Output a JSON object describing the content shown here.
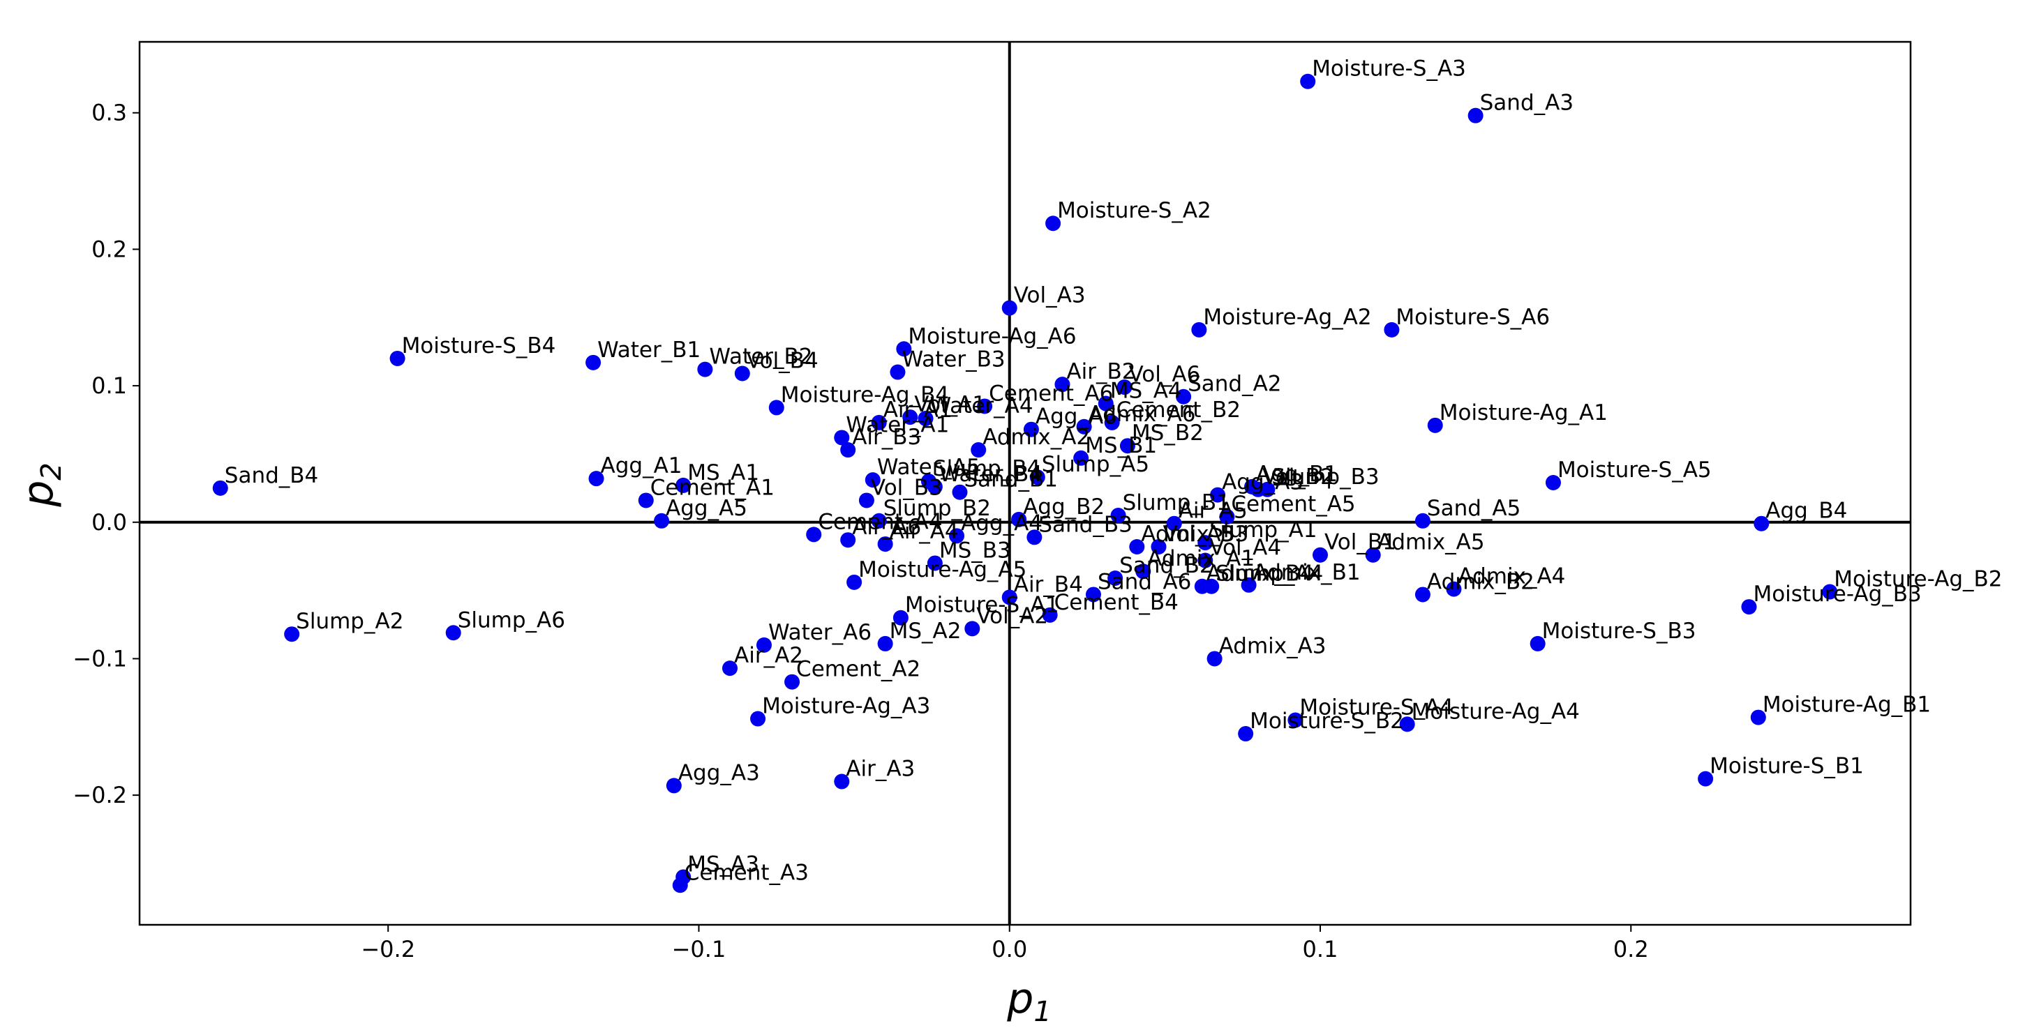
{
  "chart_data": {
    "type": "scatter",
    "title": "",
    "xlabel": "p",
    "xlabel_sub": "1",
    "ylabel": "p",
    "ylabel_sub": "2",
    "xlim": [
      -0.28,
      0.29
    ],
    "ylim": [
      -0.295,
      0.352
    ],
    "xticks": [
      -0.2,
      -0.1,
      0.0,
      0.1,
      0.2
    ],
    "xtick_labels": [
      "−0.2",
      "−0.1",
      "0.0",
      "0.1",
      "0.2"
    ],
    "yticks": [
      -0.2,
      -0.1,
      0.0,
      0.1,
      0.2,
      0.3
    ],
    "ytick_labels": [
      "−0.2",
      "−0.1",
      "0.0",
      "0.1",
      "0.2",
      "0.3"
    ],
    "grid": false,
    "reference_lines": {
      "x": 0.0,
      "y": 0.0
    },
    "marker_color": "#0000ee",
    "points": [
      {
        "label": "Moisture-S_A3",
        "x": 0.096,
        "y": 0.323
      },
      {
        "label": "Sand_A3",
        "x": 0.15,
        "y": 0.298
      },
      {
        "label": "Moisture-S_A2",
        "x": 0.014,
        "y": 0.219
      },
      {
        "label": "Vol_A3",
        "x": 0.0,
        "y": 0.157
      },
      {
        "label": "Moisture-Ag_A2",
        "x": 0.061,
        "y": 0.141
      },
      {
        "label": "Moisture-S_A6",
        "x": 0.123,
        "y": 0.141
      },
      {
        "label": "Moisture-S_B4",
        "x": -0.197,
        "y": 0.12
      },
      {
        "label": "Water_B1",
        "x": -0.134,
        "y": 0.117
      },
      {
        "label": "Water_B2",
        "x": -0.098,
        "y": 0.112
      },
      {
        "label": "Vol_B4",
        "x": -0.086,
        "y": 0.109
      },
      {
        "label": "Moisture-Ag_A6",
        "x": -0.034,
        "y": 0.127
      },
      {
        "label": "Water_B3",
        "x": -0.036,
        "y": 0.11
      },
      {
        "label": "Air_B2",
        "x": 0.017,
        "y": 0.101
      },
      {
        "label": "Vol_A6",
        "x": 0.037,
        "y": 0.099
      },
      {
        "label": "Sand_A2",
        "x": 0.056,
        "y": 0.092
      },
      {
        "label": "Cement_A6",
        "x": -0.008,
        "y": 0.085
      },
      {
        "label": "MS_A4",
        "x": 0.031,
        "y": 0.087
      },
      {
        "label": "Moisture-Ag_B4",
        "x": -0.075,
        "y": 0.084
      },
      {
        "label": "Air_A1",
        "x": -0.042,
        "y": 0.073
      },
      {
        "label": "Vol_A1",
        "x": -0.032,
        "y": 0.077
      },
      {
        "label": "Water_A4",
        "x": -0.027,
        "y": 0.076
      },
      {
        "label": "Cement_B2",
        "x": 0.033,
        "y": 0.073
      },
      {
        "label": "Moisture-Ag_A1",
        "x": 0.137,
        "y": 0.071
      },
      {
        "label": "Water_A1",
        "x": -0.054,
        "y": 0.062
      },
      {
        "label": "Agg_A6",
        "x": 0.007,
        "y": 0.068
      },
      {
        "label": "Admix_A6",
        "x": 0.024,
        "y": 0.07
      },
      {
        "label": "Admix_A2",
        "x": -0.01,
        "y": 0.053
      },
      {
        "label": "MS_B2",
        "x": 0.038,
        "y": 0.056
      },
      {
        "label": "Air_B3",
        "x": -0.052,
        "y": 0.053
      },
      {
        "label": "MS_B1",
        "x": 0.023,
        "y": 0.047
      },
      {
        "label": "Agg_A1",
        "x": -0.133,
        "y": 0.032
      },
      {
        "label": "MS_A1",
        "x": -0.105,
        "y": 0.027
      },
      {
        "label": "Cement_A1",
        "x": -0.117,
        "y": 0.016
      },
      {
        "label": "Sand_B4",
        "x": -0.254,
        "y": 0.025
      },
      {
        "label": "Moisture-S_A5",
        "x": 0.175,
        "y": 0.029
      },
      {
        "label": "Water_A5",
        "x": -0.044,
        "y": 0.031
      },
      {
        "label": "Slump_B4",
        "x": -0.026,
        "y": 0.03
      },
      {
        "label": "Slump_A5",
        "x": 0.009,
        "y": 0.033
      },
      {
        "label": "Water_B4",
        "x": -0.024,
        "y": 0.026
      },
      {
        "label": "Sand_B1",
        "x": -0.016,
        "y": 0.022
      },
      {
        "label": "Vol_B3",
        "x": -0.046,
        "y": 0.016
      },
      {
        "label": "Agg_B1",
        "x": 0.078,
        "y": 0.026
      },
      {
        "label": "Vol_B2",
        "x": 0.08,
        "y": 0.024
      },
      {
        "label": "Slump_B3",
        "x": 0.083,
        "y": 0.024
      },
      {
        "label": "Agg_A3",
        "x": 0.067,
        "y": 0.02
      },
      {
        "label": "Cement_A5",
        "x": 0.07,
        "y": 0.004
      },
      {
        "label": "Slump_B1",
        "x": 0.035,
        "y": 0.005
      },
      {
        "label": "Agg_A5",
        "x": -0.112,
        "y": 0.001
      },
      {
        "label": "Sand_A5",
        "x": 0.133,
        "y": 0.001
      },
      {
        "label": "Agg_B4",
        "x": 0.242,
        "y": -0.001
      },
      {
        "label": "Agg_B2",
        "x": 0.003,
        "y": 0.002
      },
      {
        "label": "Slump_B2",
        "x": -0.042,
        "y": 0.001
      },
      {
        "label": "Cement_A4",
        "x": -0.063,
        "y": -0.009
      },
      {
        "label": "Air_A6",
        "x": -0.052,
        "y": -0.013
      },
      {
        "label": "Sand_B3",
        "x": 0.008,
        "y": -0.011
      },
      {
        "label": "Air_A5",
        "x": 0.053,
        "y": -0.001
      },
      {
        "label": "Agg_A4",
        "x": -0.017,
        "y": -0.01
      },
      {
        "label": "Admix_B3",
        "x": 0.041,
        "y": -0.018
      },
      {
        "label": "Vol_A5",
        "x": 0.048,
        "y": -0.018
      },
      {
        "label": "Slump_A1",
        "x": 0.063,
        "y": -0.015
      },
      {
        "label": "Vol_B1",
        "x": 0.1,
        "y": -0.024
      },
      {
        "label": "Admix_A5",
        "x": 0.117,
        "y": -0.024
      },
      {
        "label": "Vol_A4",
        "x": 0.063,
        "y": -0.028
      },
      {
        "label": "MS_B3",
        "x": -0.024,
        "y": -0.03
      },
      {
        "label": "Air_A4",
        "x": -0.04,
        "y": -0.016
      },
      {
        "label": "Moisture-Ag_A5",
        "x": -0.05,
        "y": -0.044
      },
      {
        "label": "Admix_A1",
        "x": 0.043,
        "y": -0.036
      },
      {
        "label": "Sand_B2",
        "x": 0.034,
        "y": -0.041
      },
      {
        "label": "Admix_B4",
        "x": 0.062,
        "y": -0.047
      },
      {
        "label": "Slump_B4b",
        "x": 0.065,
        "y": -0.047
      },
      {
        "label": "Admix_B1",
        "x": 0.077,
        "y": -0.046
      },
      {
        "label": "Admix_B2",
        "x": 0.133,
        "y": -0.053
      },
      {
        "label": "Admix_A4",
        "x": 0.143,
        "y": -0.049
      },
      {
        "label": "Air_B4",
        "x": 0.0,
        "y": -0.055
      },
      {
        "label": "Sand_A6",
        "x": 0.027,
        "y": -0.053
      },
      {
        "label": "Cement_B4",
        "x": 0.013,
        "y": -0.068
      },
      {
        "label": "Moisture-S_A1",
        "x": -0.035,
        "y": -0.07
      },
      {
        "label": "Vol_A2",
        "x": -0.012,
        "y": -0.078
      },
      {
        "label": "MS_A2",
        "x": -0.04,
        "y": -0.089
      },
      {
        "label": "Water_A6",
        "x": -0.079,
        "y": -0.09
      },
      {
        "label": "Admix_A3",
        "x": 0.066,
        "y": -0.1
      },
      {
        "label": "Moisture-S_B3",
        "x": 0.17,
        "y": -0.089
      },
      {
        "label": "Moisture-Ag_B2",
        "x": 0.264,
        "y": -0.051
      },
      {
        "label": "Moisture-Ag_B3",
        "x": 0.238,
        "y": -0.062
      },
      {
        "label": "Air_A2",
        "x": -0.09,
        "y": -0.107
      },
      {
        "label": "Cement_A2",
        "x": -0.07,
        "y": -0.117
      },
      {
        "label": "Moisture-Ag_A3",
        "x": -0.081,
        "y": -0.144
      },
      {
        "label": "Moisture-S_A4",
        "x": 0.092,
        "y": -0.145
      },
      {
        "label": "Moisture-Ag_A4",
        "x": 0.128,
        "y": -0.148
      },
      {
        "label": "Moisture-S_B2",
        "x": 0.076,
        "y": -0.155
      },
      {
        "label": "Moisture-Ag_B1",
        "x": 0.241,
        "y": -0.143
      },
      {
        "label": "Moisture-S_B1",
        "x": 0.224,
        "y": -0.188
      },
      {
        "label": "Slump_A2",
        "x": -0.231,
        "y": -0.082
      },
      {
        "label": "Slump_A6",
        "x": -0.179,
        "y": -0.081
      },
      {
        "label": "Agg_A3b",
        "x": -0.108,
        "y": -0.193
      },
      {
        "label": "Air_A3",
        "x": -0.054,
        "y": -0.19
      },
      {
        "label": "MS_A3",
        "x": -0.105,
        "y": -0.26
      },
      {
        "label": "Cement_A3",
        "x": -0.106,
        "y": -0.266
      }
    ],
    "displayed_labels": {
      "Slump_B4b": "Slump_A4",
      "Agg_A3b": "Agg_A3"
    }
  }
}
